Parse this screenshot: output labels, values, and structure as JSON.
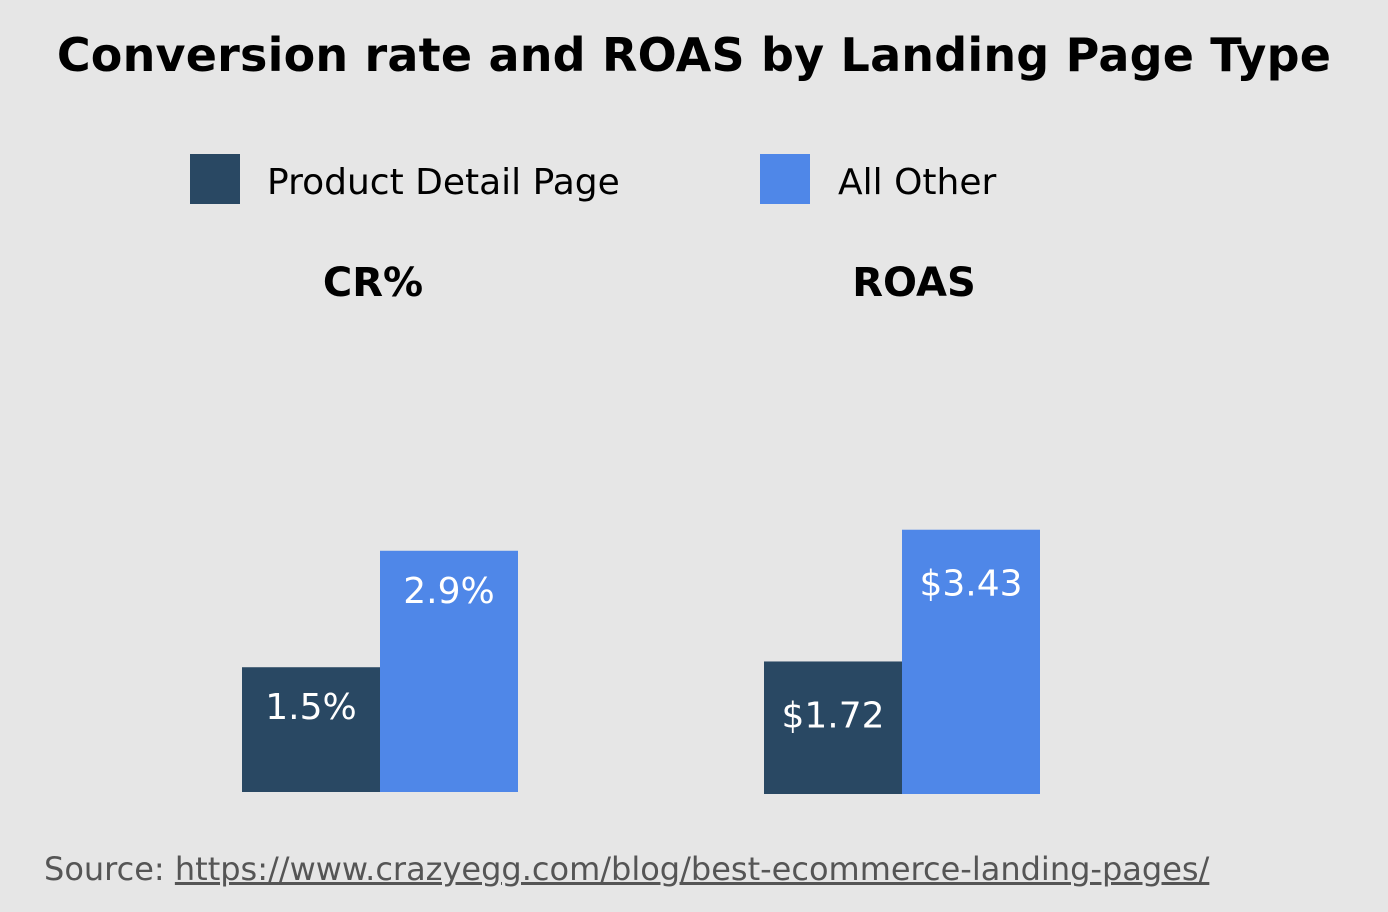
{
  "title": "Conversion rate and ROAS by Landing Page Type",
  "legend": [
    {
      "label": "Product Detail Page",
      "color": "#294863"
    },
    {
      "label": "All Other",
      "color": "#4f87e8"
    }
  ],
  "source": {
    "prefix": "Source: ",
    "link": "https://www.crazyegg.com/blog/best-ecommerce-landing-pages/"
  },
  "chart_data": [
    {
      "type": "bar",
      "title": "CR%",
      "categories": [
        "CR%"
      ],
      "series": [
        {
          "name": "Product Detail Page",
          "values": [
            1.5
          ],
          "labels": [
            "1.5%"
          ],
          "color": "#294863"
        },
        {
          "name": "All Other",
          "values": [
            2.9
          ],
          "labels": [
            "2.9%"
          ],
          "color": "#4f87e8"
        }
      ],
      "ylim": [
        0,
        5.53
      ],
      "grid": false,
      "legend": "top"
    },
    {
      "type": "bar",
      "title": "ROAS",
      "categories": [
        "ROAS"
      ],
      "series": [
        {
          "name": "Product Detail Page",
          "values": [
            1.72
          ],
          "labels": [
            "$1.72"
          ],
          "color": "#294863"
        },
        {
          "name": "All Other",
          "values": [
            3.43
          ],
          "labels": [
            "$3.43"
          ],
          "color": "#4f87e8"
        }
      ],
      "ylim": [
        0,
        6.1
      ],
      "grid": false,
      "legend": "top"
    }
  ]
}
